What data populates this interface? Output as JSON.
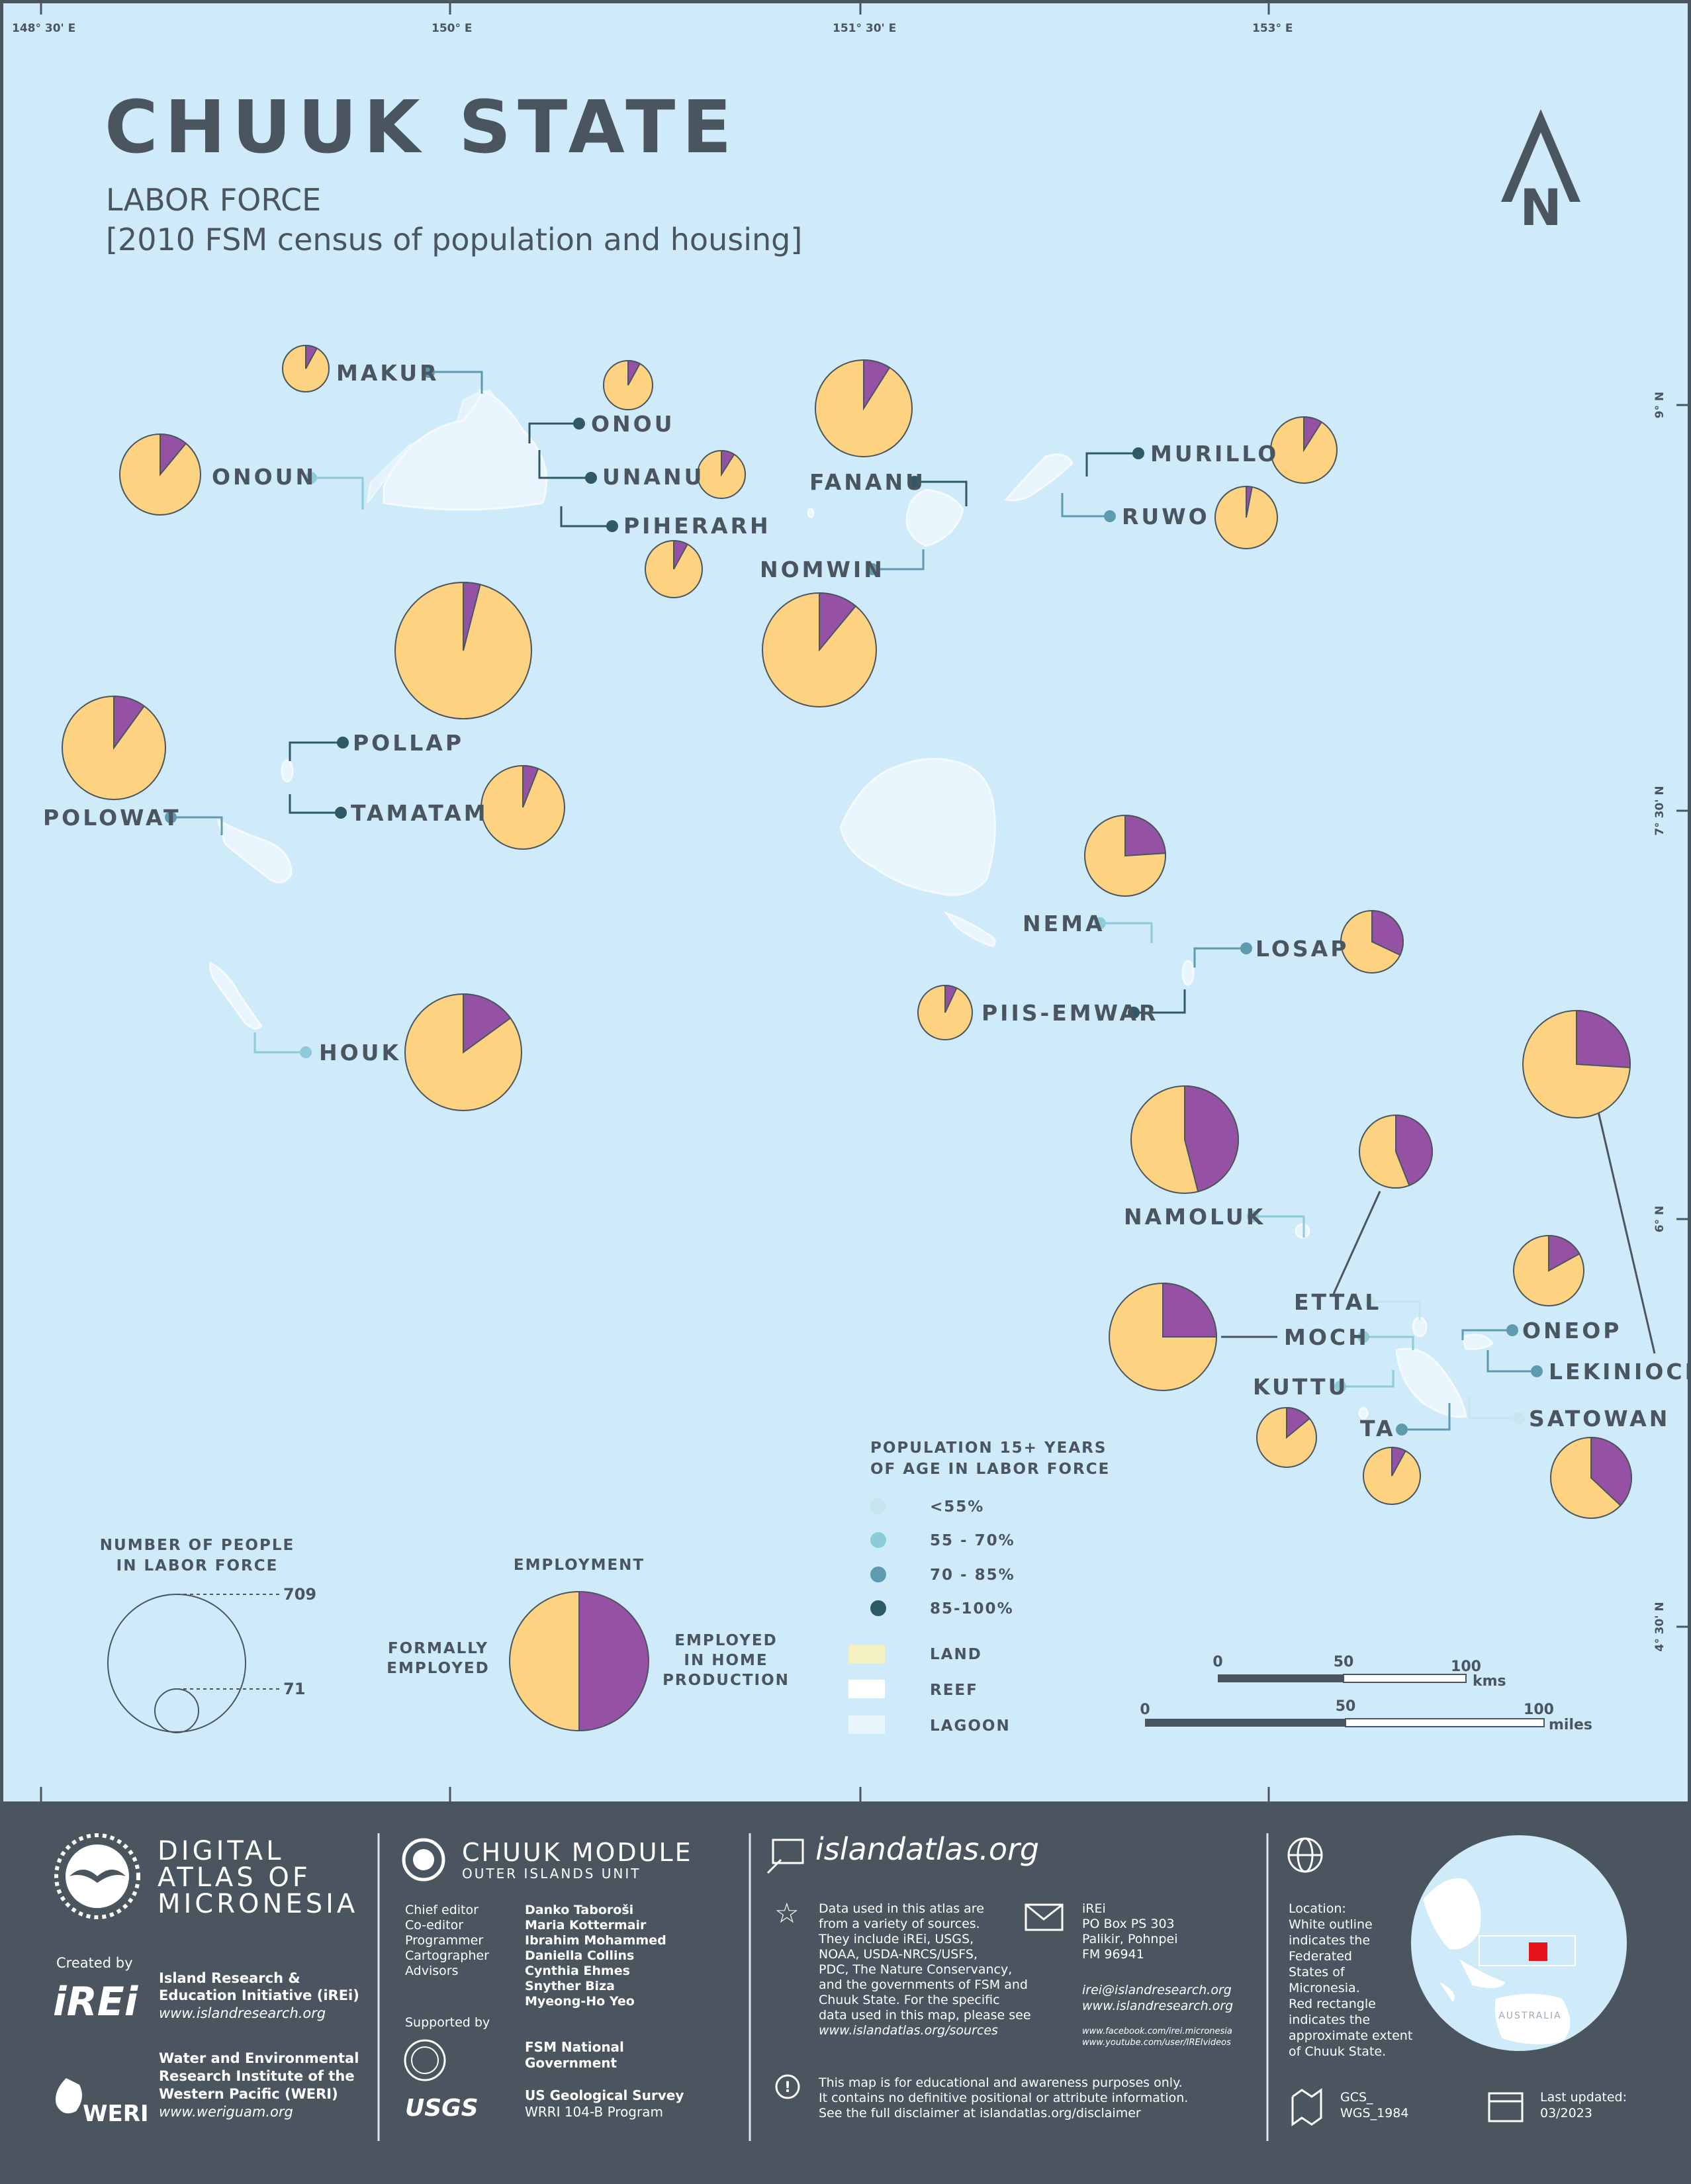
{
  "title": "CHUUK STATE",
  "subtitle1": "LABOR FORCE",
  "subtitle2": "[2010 FSM census of population and housing]",
  "north": "N",
  "graticule": {
    "top": [
      "148° 30' E",
      "150° E",
      "151° 30' E",
      "153° E"
    ],
    "right": [
      "9° N",
      "7° 30' N",
      "6° N",
      "4° 30' N"
    ]
  },
  "colors": {
    "water": "#cfeaf8",
    "formal": "#fdd381",
    "home": "#9552a4",
    "dot_lt55": "#c6e6ee",
    "dot_55_70": "#8ccbd7",
    "dot_70_85": "#5e9bae",
    "dot_85_100": "#2f5966",
    "footer": "#4a5560"
  },
  "islands": [
    {
      "name": "MAKUR",
      "home_pct": 8
    },
    {
      "name": "ONOU",
      "home_pct": 8
    },
    {
      "name": "ONOUN",
      "home_pct": 11
    },
    {
      "name": "UNANU",
      "home_pct": 9
    },
    {
      "name": "PIHERARH",
      "home_pct": 8
    },
    {
      "name": "FANANU",
      "home_pct": 9
    },
    {
      "name": "NOMWIN",
      "home_pct": 11
    },
    {
      "name": "MURILLO",
      "home_pct": 9
    },
    {
      "name": "RUWO",
      "home_pct": 3
    },
    {
      "name": "POLLAP",
      "home_pct": 4
    },
    {
      "name": "TAMATAM",
      "home_pct": 6
    },
    {
      "name": "POLOWAT",
      "home_pct": 10
    },
    {
      "name": "HOUK",
      "home_pct": 15
    },
    {
      "name": "NEMA",
      "home_pct": 24
    },
    {
      "name": "LOSAP",
      "home_pct": 32
    },
    {
      "name": "PIIS-EMWAR",
      "home_pct": 7
    },
    {
      "name": "NAMOLUK",
      "home_pct": 46
    },
    {
      "name": "ETTAL",
      "home_pct": 44
    },
    {
      "name": "MOCH",
      "home_pct": 25
    },
    {
      "name": "KUTTU",
      "home_pct": 14
    },
    {
      "name": "ONEOP",
      "home_pct": 17
    },
    {
      "name": "LEKINIOCH",
      "home_pct": 26
    },
    {
      "name": "SATOWAN",
      "home_pct": 37
    },
    {
      "name": "TA",
      "home_pct": 8
    }
  ],
  "legend": {
    "size_title1": "NUMBER OF PEOPLE",
    "size_title2": "IN LABOR FORCE",
    "size_max": "709",
    "size_min": "71",
    "emp_title": "EMPLOYMENT",
    "emp_left1": "FORMALLY",
    "emp_left2": "EMPLOYED",
    "emp_right1": "EMPLOYED",
    "emp_right2": "IN HOME",
    "emp_right3": "PRODUCTION",
    "pop_title1": "POPULATION 15+ YEARS",
    "pop_title2": "OF AGE IN LABOR FORCE",
    "classes": [
      "<55%",
      "55 - 70%",
      "70 - 85%",
      "85-100%"
    ],
    "land": "LAND",
    "reef": "REEF",
    "lagoon": "LAGOON"
  },
  "scalebar": {
    "km": [
      "0",
      "50",
      "100"
    ],
    "km_unit": "kms",
    "mi": [
      "0",
      "50",
      "100"
    ],
    "mi_unit": "miles"
  },
  "footer": {
    "atlas_line1": "DIGITAL",
    "atlas_line2": "ATLAS OF",
    "atlas_line3": "MICRONESIA",
    "created_by": "Created by",
    "irei_logo": "iREi",
    "irei_name1": "Island Research &",
    "irei_name2": "Education Initiative (iREi)",
    "irei_url": "www.islandresearch.org",
    "weri_logo": "WERI",
    "weri_name1": "Water and Environmental",
    "weri_name2": "Research Institute of the",
    "weri_name3": "Western Pacific (WERI)",
    "weri_url": "www.weriguam.org",
    "module_title": "CHUUK MODULE",
    "module_sub": "OUTER ISLANDS UNIT",
    "credits": [
      {
        "role": "Chief editor",
        "name": "Danko Taboroši"
      },
      {
        "role": "Co-editor",
        "name": "Maria Kottermair"
      },
      {
        "role": "Programmer",
        "name": "Ibrahim Mohammed"
      },
      {
        "role": "Cartographer",
        "name": "Daniella Collins"
      },
      {
        "role": "Advisors",
        "name": "Cynthia Ehmes"
      },
      {
        "role": "",
        "name": "Snyther Biza"
      },
      {
        "role": "",
        "name": "Myeong-Ho Yeo"
      }
    ],
    "supported_by": "Supported by",
    "fsm1": "FSM National",
    "fsm2": "Government",
    "usgs_logo": "USGS",
    "usgs1": "US Geological Survey",
    "usgs2": "WRRI 104-B Program",
    "site": "islandatlas.org",
    "sources": [
      "Data used in this atlas are",
      "from a variety of sources.",
      "They include iREi, USGS,",
      "NOAA, USDA-NRCS/USFS,",
      "PDC, The Nature Conservancy,",
      "and the governments of FSM and",
      "Chuuk State. For the specific",
      "data used in this map, please see",
      "www.islandatlas.org/sources"
    ],
    "disclaimer": [
      "This map is for educational and awareness purposes only.",
      "It contains no definitive positional or attribute information.",
      "See the full disclaimer at islandatlas.org/disclaimer"
    ],
    "address": [
      "iREi",
      "PO Box PS 303",
      "Palikir, Pohnpei",
      "FM 96941"
    ],
    "email": "irei@islandresearch.org",
    "web": "www.islandresearch.org",
    "facebook": "www.facebook.com/irei.micronesia",
    "youtube": "www.youtube.com/user/IREIvideos",
    "location": [
      "Location:",
      "White outline",
      "indicates the",
      "Federated",
      "States of",
      "Micronesia.",
      "Red rectangle",
      "indicates the",
      "approximate extent",
      "of Chuuk State."
    ],
    "crs1": "GCS_",
    "crs2": "WGS_1984",
    "updated1": "Last updated:",
    "updated2": "03/2023",
    "globe_label": "AUSTRALIA"
  }
}
